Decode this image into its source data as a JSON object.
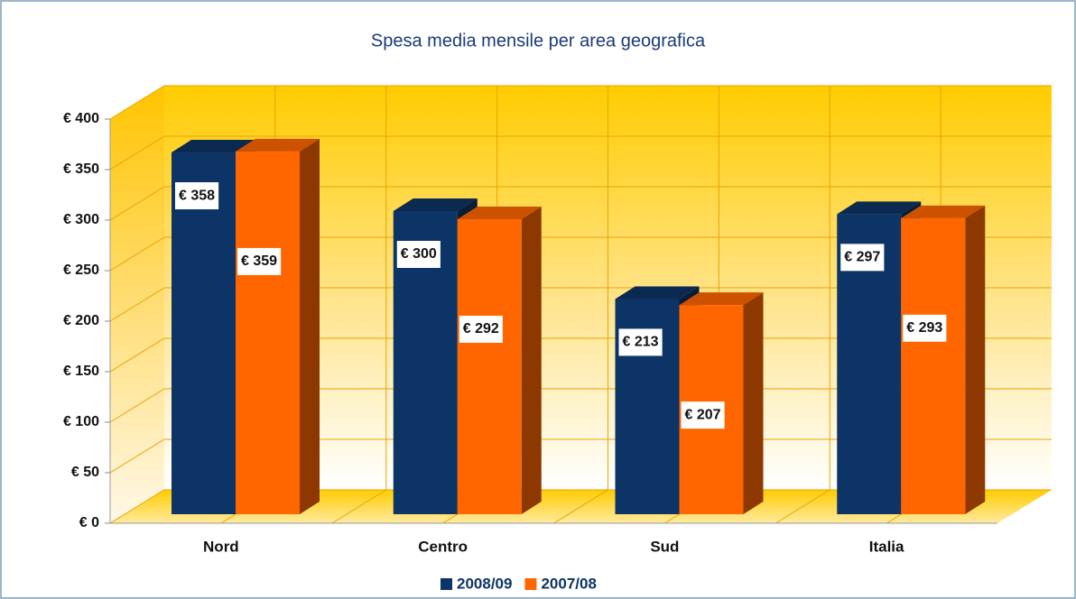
{
  "chart_data": {
    "type": "bar3d",
    "title": "Spesa media mensile per area geografica",
    "categories": [
      "Nord",
      "Centro",
      "Sud",
      "Italia"
    ],
    "series": [
      {
        "name": "2008/09",
        "color": "#0d3466",
        "values": [
          358,
          300,
          213,
          297
        ],
        "value_labels": [
          "€ 358",
          "€ 300",
          "€ 213",
          "€ 297"
        ]
      },
      {
        "name": "2007/08",
        "color": "#ff6600",
        "values": [
          359,
          292,
          207,
          293
        ],
        "value_labels": [
          "€ 359",
          "€ 292",
          "€ 207",
          "€ 293"
        ]
      }
    ],
    "ylim": [
      0,
      400
    ],
    "yticks": [
      {
        "value": 0,
        "label": "€ 0"
      },
      {
        "value": 50,
        "label": "€ 50"
      },
      {
        "value": 100,
        "label": "€ 100"
      },
      {
        "value": 150,
        "label": "€ 150"
      },
      {
        "value": 200,
        "label": "€ 200"
      },
      {
        "value": 250,
        "label": "€ 250"
      },
      {
        "value": 300,
        "label": "€ 300"
      },
      {
        "value": 350,
        "label": "€ 350"
      },
      {
        "value": 400,
        "label": "€ 400"
      }
    ],
    "grid": true,
    "legend": "bottom"
  }
}
